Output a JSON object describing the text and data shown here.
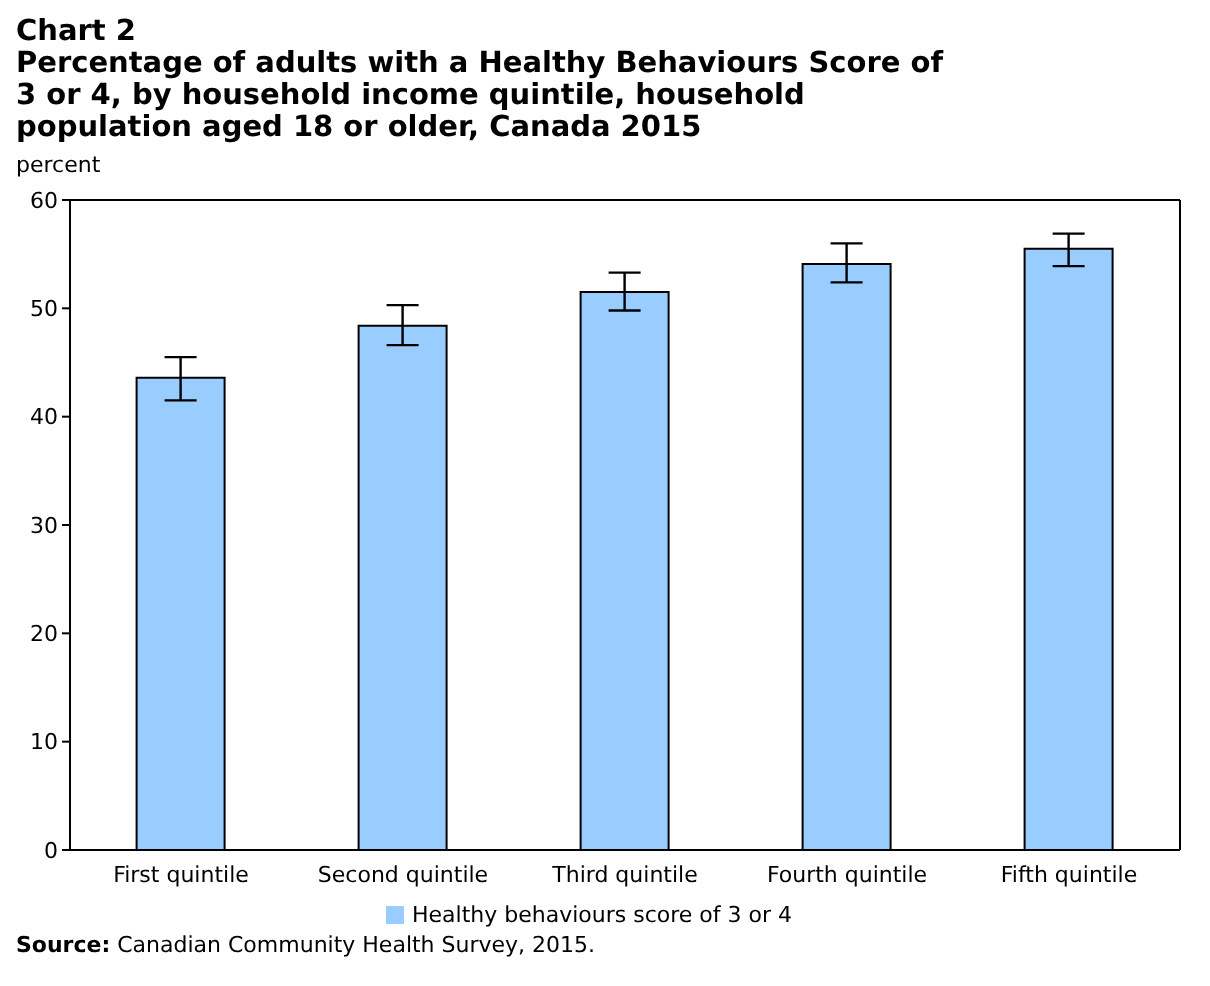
{
  "chart_data": {
    "type": "bar",
    "title": "Chart 2",
    "subtitle": "Percentage of adults with a Healthy Behaviours Score of 3 or 4, by household income quintile, household population aged 18 or older, Canada 2015",
    "ylabel": "percent",
    "categories": [
      "First quintile",
      "Second quintile",
      "Third quintile",
      "Fourth quintile",
      "Fifth quintile"
    ],
    "series": [
      {
        "name": "Healthy behaviours score of 3 or 4",
        "color": "#99ccff",
        "values": [
          43.6,
          48.4,
          51.5,
          54.1,
          55.5
        ],
        "errors": [
          [
            41.5,
            45.5
          ],
          [
            46.6,
            50.3
          ],
          [
            49.8,
            53.3
          ],
          [
            52.4,
            56.0
          ],
          [
            53.9,
            56.9
          ]
        ]
      }
    ],
    "ylim": [
      0,
      60
    ],
    "yticks": [
      0,
      10,
      20,
      30,
      40,
      50,
      60
    ],
    "grid": false,
    "legend": "bottom",
    "annotations": [
      "Source: Canadian Community Health Survey, 2015."
    ]
  }
}
